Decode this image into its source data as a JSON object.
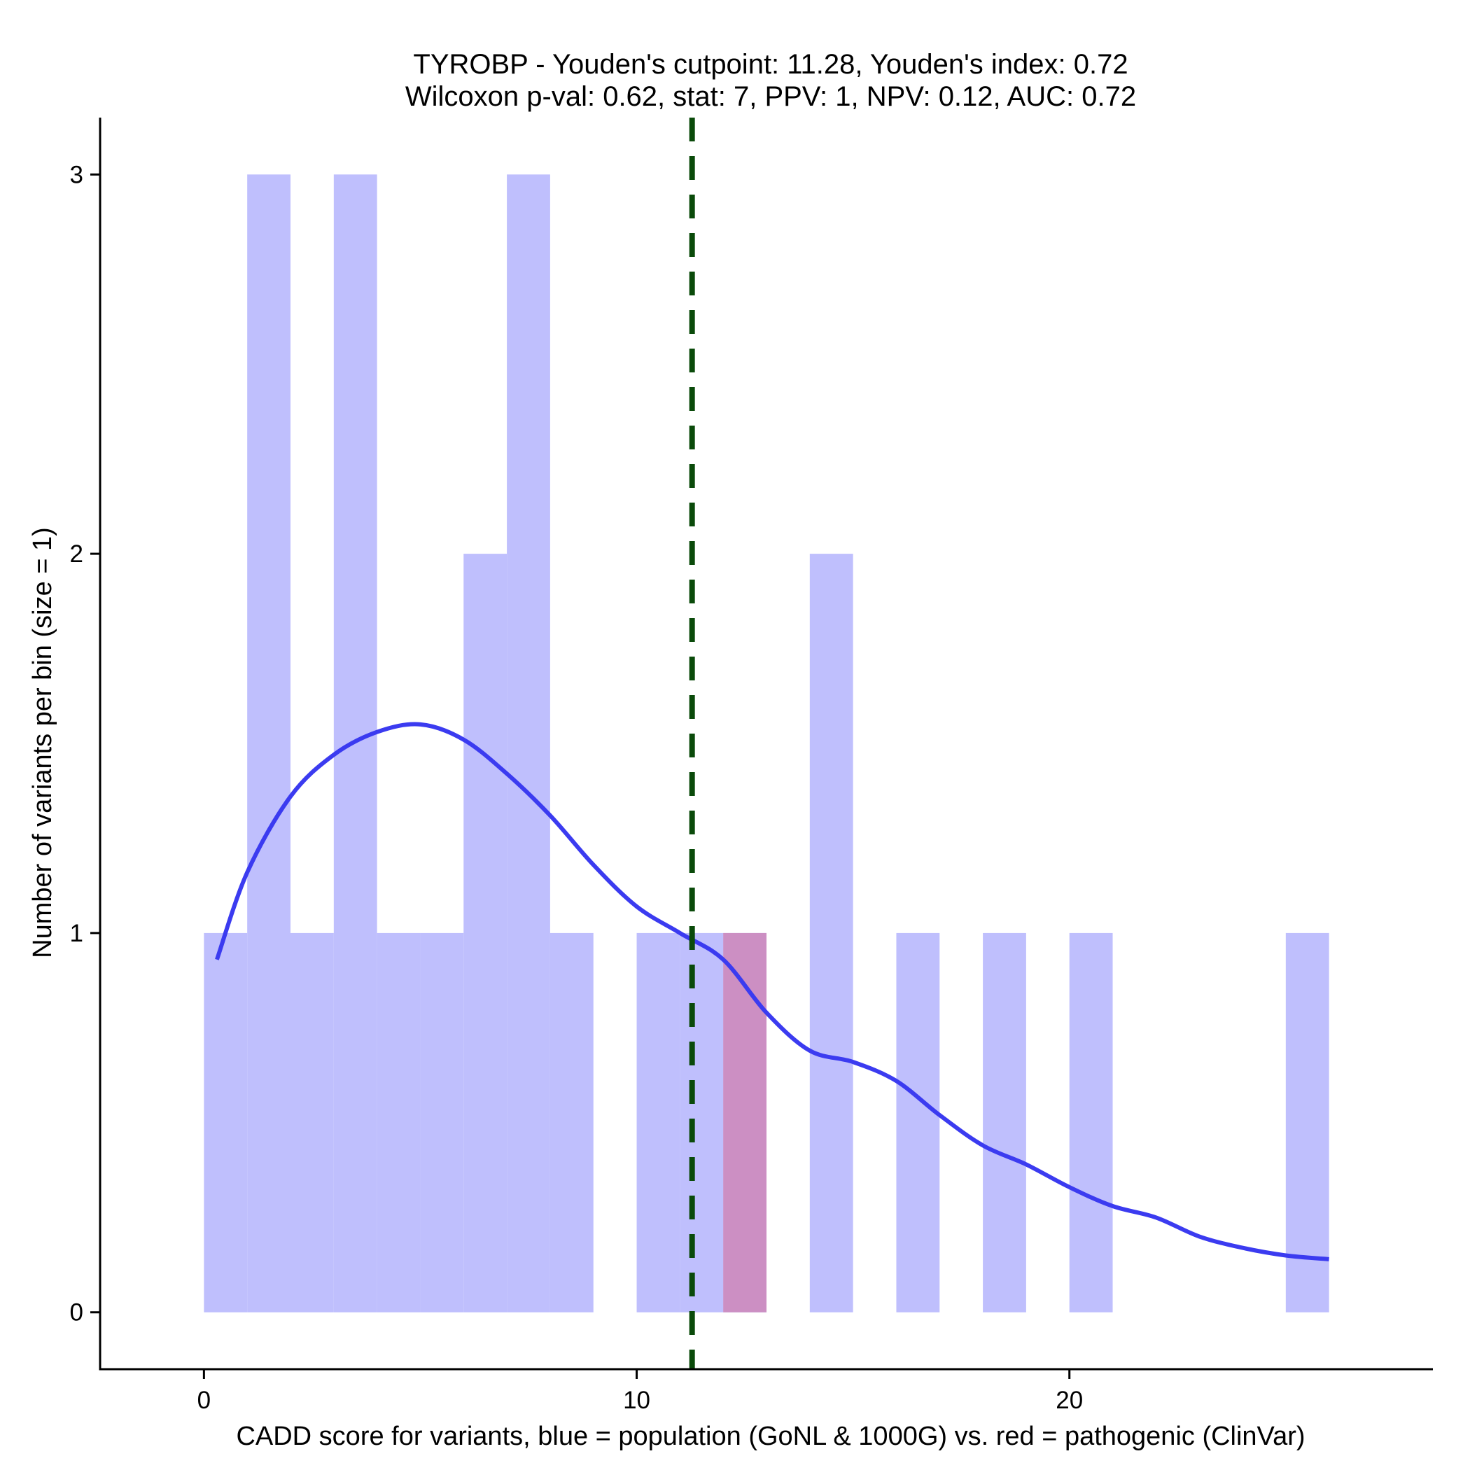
{
  "chart_data": {
    "type": "histogram",
    "title_lines": [
      "TYROBP - Youden's cutpoint: 11.28, Youden's index: 0.72",
      "Wilcoxon p-val: 0.62, stat: 7, PPV: 1, NPV: 0.12, AUC: 0.72"
    ],
    "xlabel": "CADD score for variants, blue = population (GoNL & 1000G) vs. red = pathogenic (ClinVar)",
    "ylabel": "Number of variants per bin (size = 1)",
    "xlim": [
      -2.4,
      28.4
    ],
    "ylim": [
      -0.15,
      3.15
    ],
    "x_ticks": [
      0,
      10,
      20
    ],
    "x_tick_labels": [
      "0",
      "10",
      "20"
    ],
    "y_ticks": [
      0,
      1,
      2,
      3
    ],
    "y_tick_labels": [
      "0",
      "1",
      "2",
      "3"
    ],
    "bin_width": 1,
    "population_bins": [
      {
        "start": 0,
        "count": 1
      },
      {
        "start": 1,
        "count": 3
      },
      {
        "start": 2,
        "count": 1
      },
      {
        "start": 3,
        "count": 3
      },
      {
        "start": 4,
        "count": 1
      },
      {
        "start": 5,
        "count": 1
      },
      {
        "start": 6,
        "count": 2
      },
      {
        "start": 7,
        "count": 3
      },
      {
        "start": 8,
        "count": 1
      },
      {
        "start": 10,
        "count": 1
      },
      {
        "start": 11,
        "count": 1
      },
      {
        "start": 12,
        "count": 1
      },
      {
        "start": 14,
        "count": 2
      },
      {
        "start": 16,
        "count": 1
      },
      {
        "start": 18,
        "count": 1
      },
      {
        "start": 20,
        "count": 1
      },
      {
        "start": 25,
        "count": 1
      }
    ],
    "pathogenic_bins": [
      {
        "start": 12,
        "count": 1
      }
    ],
    "density_curve": {
      "x": [
        0.3,
        1,
        2,
        3,
        4,
        5,
        6,
        7,
        8,
        9,
        10,
        11,
        12,
        13,
        14,
        15,
        16,
        17,
        18,
        19,
        20,
        21,
        22,
        23,
        24,
        25,
        26
      ],
      "y": [
        0.93,
        1.16,
        1.36,
        1.47,
        1.53,
        1.55,
        1.51,
        1.42,
        1.31,
        1.18,
        1.07,
        1.0,
        0.93,
        0.79,
        0.69,
        0.66,
        0.61,
        0.52,
        0.44,
        0.39,
        0.33,
        0.28,
        0.25,
        0.2,
        0.17,
        0.15,
        0.14
      ]
    },
    "cutpoint": 11.28,
    "colors": {
      "population": "#bfbffd",
      "pathogenic": "#cc8fc3",
      "density": "#3b3bf0",
      "cutpoint": "#0a4a0a",
      "axis": "#000000"
    }
  }
}
